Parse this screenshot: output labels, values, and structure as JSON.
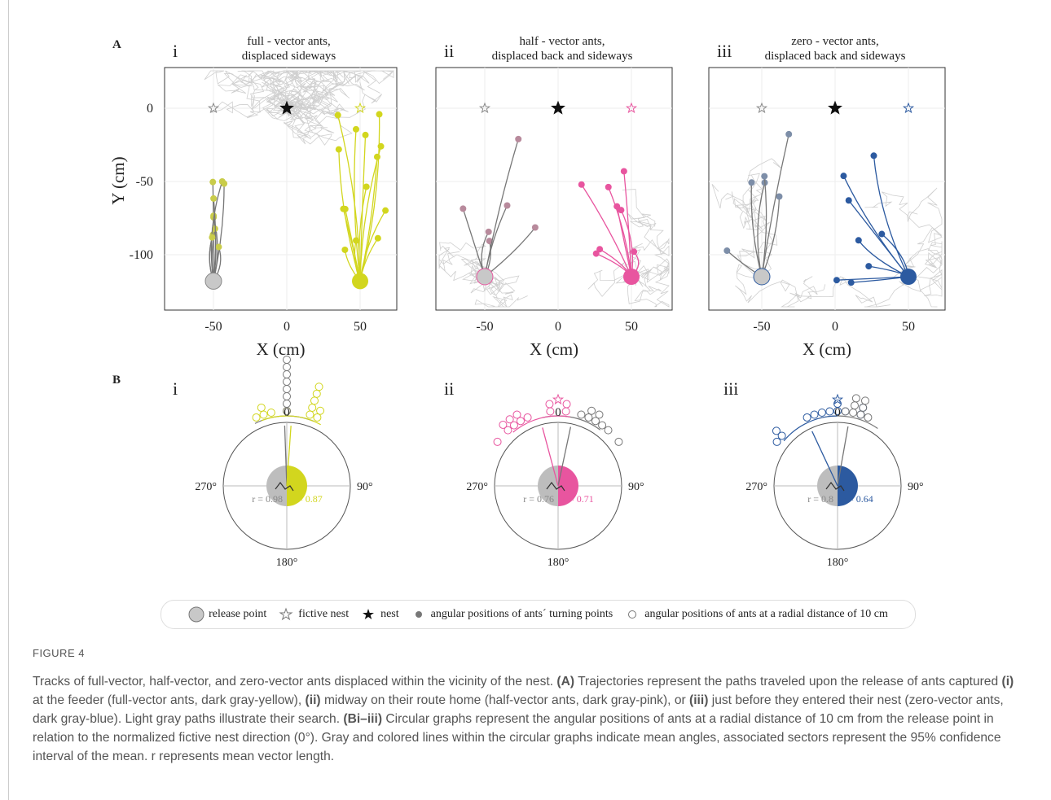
{
  "figure": {
    "panel_a": {
      "label": "A",
      "y_label": "Y (cm)",
      "x_label": "X (cm)",
      "xticks": [
        -50,
        0,
        50
      ],
      "yticks": [
        0,
        -50,
        -100
      ],
      "panels": [
        {
          "numeral": "i",
          "title_lines": [
            "full - vector ants,",
            "displaced sideways"
          ],
          "color": "#d2d61e"
        },
        {
          "numeral": "ii",
          "title_lines": [
            "half - vector ants,",
            "displaced back and sideways"
          ],
          "color": "#e8559f"
        },
        {
          "numeral": "iii",
          "title_lines": [
            "zero - vector ants,",
            "displaced back and sideways"
          ],
          "color": "#2c5aa0"
        }
      ]
    },
    "panel_b": {
      "label": "B",
      "angle_labels": {
        "top": "0",
        "right": "90°",
        "bottom": "180°",
        "left": "270°"
      },
      "panels": [
        {
          "numeral": "i",
          "r_gray": "r = 0.98",
          "r_color": "r = 0.87"
        },
        {
          "numeral": "ii",
          "r_gray": "r = 0.76",
          "r_color": "r = 0.71"
        },
        {
          "numeral": "iii",
          "r_gray": "r = 0.8",
          "r_color": "r = 0.64"
        }
      ]
    },
    "legend": [
      "release point",
      "fictive nest",
      "nest",
      "angular positions of ants´ turning points",
      "angular positions of ants at a radial distance of 10 cm"
    ],
    "caption": {
      "title": "FIGURE 4",
      "segments": [
        {
          "text": "Tracks of full-vector, half-vector, and zero-vector ants displaced within the vicinity of the nest. "
        },
        {
          "text": "(A)",
          "bold": true
        },
        {
          "text": " Trajectories represent the paths traveled upon the release of ants captured "
        },
        {
          "text": "(i)",
          "bold": true
        },
        {
          "text": " at the feeder (full-vector ants, dark gray-yellow), "
        },
        {
          "text": "(ii)",
          "bold": true
        },
        {
          "text": " midway on their route home (half-vector ants, dark gray-pink), or "
        },
        {
          "text": "(iii)",
          "bold": true
        },
        {
          "text": " just before they entered their nest (zero-vector ants, dark gray-blue). Light gray paths illustrate their search. "
        },
        {
          "text": "(Bi–iii)",
          "bold": true
        },
        {
          "text": " Circular graphs represent the angular positions of ants at a radial distance of 10 cm from the release point in relation to the normalized fictive nest direction (0°). Gray and colored lines within the circular graphs indicate mean angles, associated sectors represent the 95% confidence interval of the mean. r represents mean vector length."
        }
      ]
    }
  }
}
